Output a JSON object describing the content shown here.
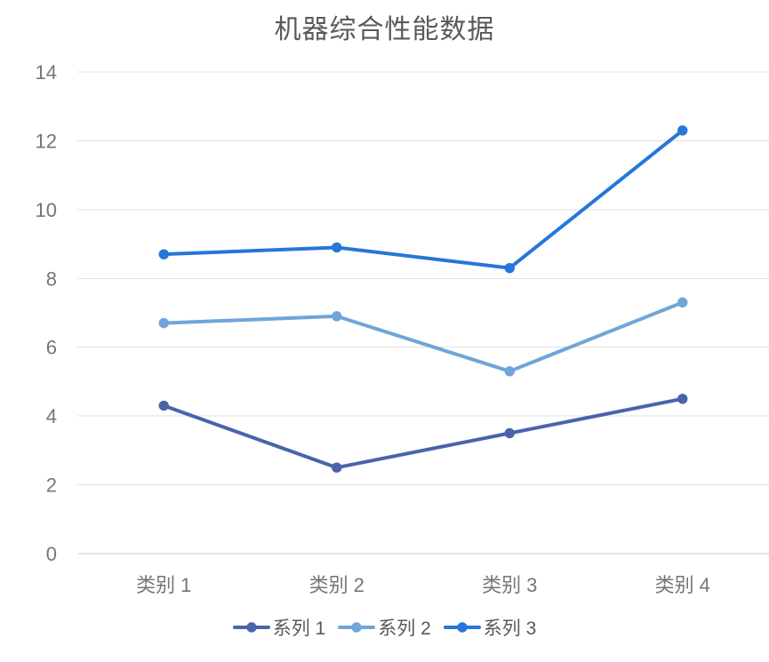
{
  "chart_data": {
    "type": "line",
    "title": "机器综合性能数据",
    "categories": [
      "类别 1",
      "类别 2",
      "类别 3",
      "类别 4"
    ],
    "series": [
      {
        "name": "系列 1",
        "values": [
          4.3,
          2.5,
          3.5,
          4.5
        ],
        "color": "#4a63ab"
      },
      {
        "name": "系列 2",
        "values": [
          6.7,
          6.9,
          5.3,
          7.3
        ],
        "color": "#6fa5d9"
      },
      {
        "name": "系列 3",
        "values": [
          8.7,
          8.9,
          8.3,
          12.3
        ],
        "color": "#2577d8"
      }
    ],
    "ylim": [
      0,
      14
    ],
    "ytick_step": 2,
    "yticks": [
      0,
      2,
      4,
      6,
      8,
      10,
      12,
      14
    ],
    "grid": true,
    "legend_position": "bottom"
  },
  "styles": {
    "background": "#ffffff",
    "title_color": "#595959",
    "axis_label_color": "#757575",
    "gridline_color": "#e2e2e2",
    "zero_line_color": "#cccccc",
    "legend_text_color": "#595959"
  }
}
